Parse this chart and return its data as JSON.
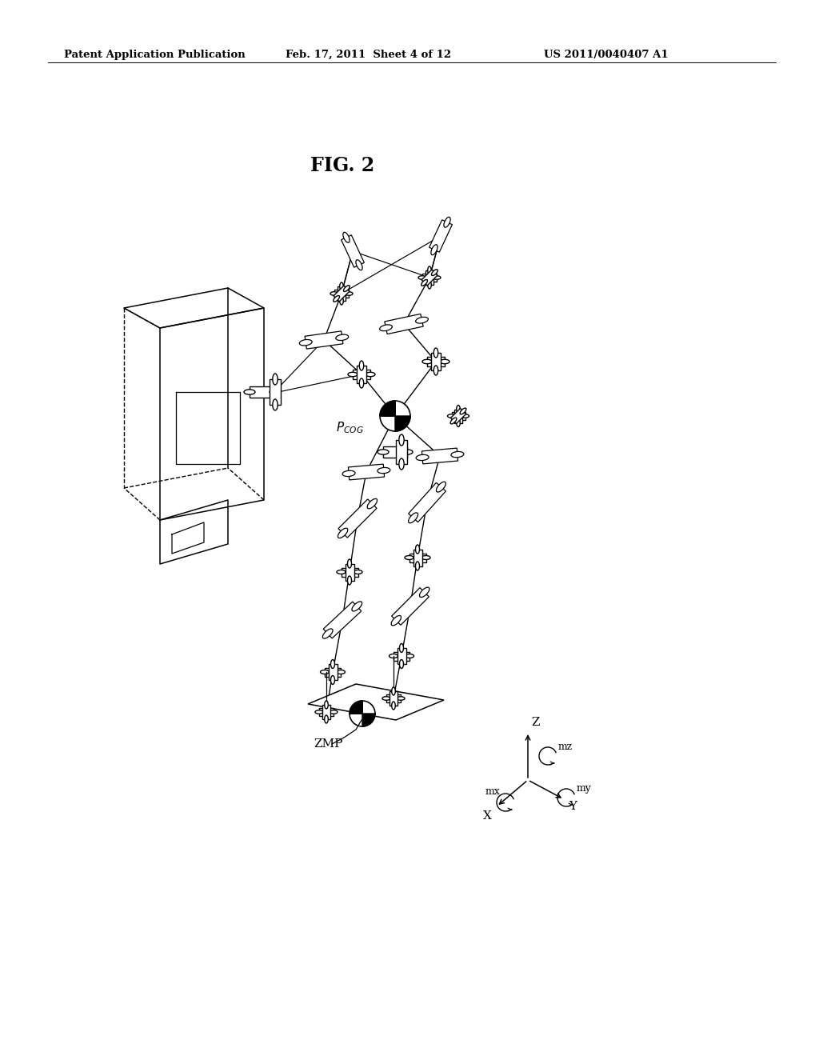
{
  "bg_color": "#ffffff",
  "header_left": "Patent Application Publication",
  "header_center": "Feb. 17, 2011  Sheet 4 of 12",
  "header_right": "US 2011/0040407 A1",
  "fig_label": "FIG. 2",
  "label_pcog": "P_COG",
  "label_zmp": "ZMP"
}
